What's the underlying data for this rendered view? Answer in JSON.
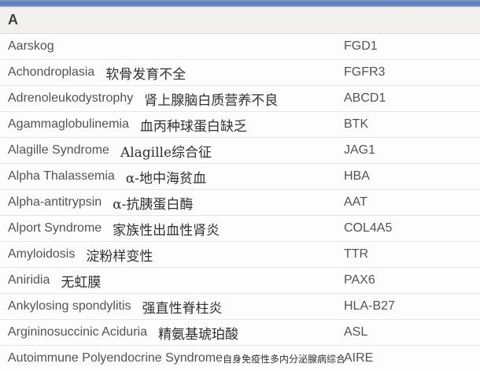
{
  "section": {
    "letter": "A"
  },
  "colors": {
    "accent_bar": "#6384bc",
    "header_bg": "#f2f1ef",
    "row_divider": "#e5e5e5",
    "text": "#535353"
  },
  "table": {
    "rows": [
      {
        "name_en": "Aarskog",
        "name_zh": "",
        "gene": "FGD1",
        "compact": false
      },
      {
        "name_en": "Achondroplasia",
        "name_zh": "软骨发育不全",
        "gene": "FGFR3",
        "compact": false
      },
      {
        "name_en": "Adrenoleukodystrophy",
        "name_zh": "肾上腺脑白质营养不良",
        "gene": "ABCD1",
        "compact": false
      },
      {
        "name_en": "Agammaglobulinemia",
        "name_zh": "血丙种球蛋白缺乏",
        "gene": "BTK",
        "compact": false
      },
      {
        "name_en": "Alagille Syndrome",
        "name_zh": "Alagille综合征",
        "gene": "JAG1",
        "compact": false
      },
      {
        "name_en": "Alpha Thalassemia",
        "name_zh": "α-地中海贫血",
        "gene": "HBA",
        "compact": false
      },
      {
        "name_en": "Alpha-antitrypsin",
        "name_zh": "α-抗胰蛋白酶",
        "gene": "AAT",
        "compact": false
      },
      {
        "name_en": "Alport Syndrome",
        "name_zh": "家族性出血性肾炎",
        "gene": "COL4A5",
        "compact": false
      },
      {
        "name_en": "Amyloidosis",
        "name_zh": "淀粉样变性",
        "gene": "TTR",
        "compact": false
      },
      {
        "name_en": "Aniridia",
        "name_zh": "无虹膜",
        "gene": "PAX6",
        "compact": false
      },
      {
        "name_en": "Ankylosing spondylitis",
        "name_zh": "强直性脊柱炎",
        "gene": "HLA-B27",
        "compact": false
      },
      {
        "name_en": "Argininosuccinic Aciduria",
        "name_zh": "精氨基琥珀酸",
        "gene": "ASL",
        "compact": false
      },
      {
        "name_en": "Autoimmune Polyendocrine Syndrome",
        "name_zh": "自身免疫性多内分泌腺病综合征",
        "gene": "AIRE",
        "compact": true
      }
    ]
  }
}
